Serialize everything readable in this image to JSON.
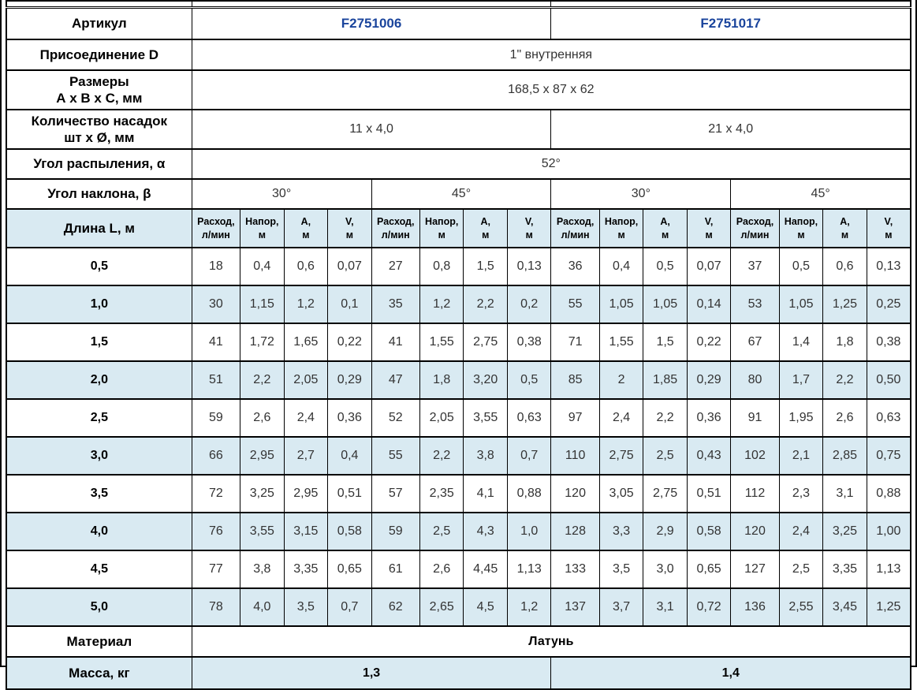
{
  "colors": {
    "stripe_blue": "#d9eaf2",
    "article_link_blue": "#1a449c",
    "border_black": "#000000"
  },
  "table": {
    "article": {
      "label": "Артикул",
      "values": [
        "F2751006",
        "F2751017"
      ]
    },
    "connection": {
      "label": "Присоединение D",
      "value": "1\" внутренняя"
    },
    "dimensions": {
      "label_line1": "Размеры",
      "label_line2": "А х В х С, мм",
      "value": "168,5 x 87 x 62"
    },
    "nozzles": {
      "label_line1": "Количество насадок",
      "label_line2": "шт х Ø, мм",
      "values": [
        "11 x 4,0",
        "21 x 4,0"
      ]
    },
    "spray_angle": {
      "label": "Угол распыления, α",
      "value": "52°"
    },
    "tilt_angle": {
      "label": "Угол наклона, β",
      "values": [
        "30°",
        "45°",
        "30°",
        "45°"
      ]
    },
    "length_header": "Длина L, м",
    "measure_headers": [
      {
        "line1": "Расход,",
        "line2": "л/мин"
      },
      {
        "line1": "Напор,",
        "line2": "м"
      },
      {
        "line1": "А,",
        "line2": "м"
      },
      {
        "line1": "V,",
        "line2": "м"
      }
    ],
    "rows": [
      {
        "length": "0,5",
        "values": [
          "18",
          "0,4",
          "0,6",
          "0,07",
          "27",
          "0,8",
          "1,5",
          "0,13",
          "36",
          "0,4",
          "0,5",
          "0,07",
          "37",
          "0,5",
          "0,6",
          "0,13"
        ]
      },
      {
        "length": "1,0",
        "values": [
          "30",
          "1,15",
          "1,2",
          "0,1",
          "35",
          "1,2",
          "2,2",
          "0,2",
          "55",
          "1,05",
          "1,05",
          "0,14",
          "53",
          "1,05",
          "1,25",
          "0,25"
        ]
      },
      {
        "length": "1,5",
        "values": [
          "41",
          "1,72",
          "1,65",
          "0,22",
          "41",
          "1,55",
          "2,75",
          "0,38",
          "71",
          "1,55",
          "1,5",
          "0,22",
          "67",
          "1,4",
          "1,8",
          "0,38"
        ]
      },
      {
        "length": "2,0",
        "values": [
          "51",
          "2,2",
          "2,05",
          "0,29",
          "47",
          "1,8",
          "3,20",
          "0,5",
          "85",
          "2",
          "1,85",
          "0,29",
          "80",
          "1,7",
          "2,2",
          "0,50"
        ]
      },
      {
        "length": "2,5",
        "values": [
          "59",
          "2,6",
          "2,4",
          "0,36",
          "52",
          "2,05",
          "3,55",
          "0,63",
          "97",
          "2,4",
          "2,2",
          "0,36",
          "91",
          "1,95",
          "2,6",
          "0,63"
        ]
      },
      {
        "length": "3,0",
        "values": [
          "66",
          "2,95",
          "2,7",
          "0,4",
          "55",
          "2,2",
          "3,8",
          "0,7",
          "110",
          "2,75",
          "2,5",
          "0,43",
          "102",
          "2,1",
          "2,85",
          "0,75"
        ]
      },
      {
        "length": "3,5",
        "values": [
          "72",
          "3,25",
          "2,95",
          "0,51",
          "57",
          "2,35",
          "4,1",
          "0,88",
          "120",
          "3,05",
          "2,75",
          "0,51",
          "112",
          "2,3",
          "3,1",
          "0,88"
        ]
      },
      {
        "length": "4,0",
        "values": [
          "76",
          "3,55",
          "3,15",
          "0,58",
          "59",
          "2,5",
          "4,3",
          "1,0",
          "128",
          "3,3",
          "2,9",
          "0,58",
          "120",
          "2,4",
          "3,25",
          "1,00"
        ]
      },
      {
        "length": "4,5",
        "values": [
          "77",
          "3,8",
          "3,35",
          "0,65",
          "61",
          "2,6",
          "4,45",
          "1,13",
          "133",
          "3,5",
          "3,0",
          "0,65",
          "127",
          "2,5",
          "3,35",
          "1,13"
        ]
      },
      {
        "length": "5,0",
        "values": [
          "78",
          "4,0",
          "3,5",
          "0,7",
          "62",
          "2,65",
          "4,5",
          "1,2",
          "137",
          "3,7",
          "3,1",
          "0,72",
          "136",
          "2,55",
          "3,45",
          "1,25"
        ]
      }
    ],
    "material": {
      "label": "Материал",
      "value": "Латунь"
    },
    "weight": {
      "label": "Масса, кг",
      "values": [
        "1,3",
        "1,4"
      ]
    }
  }
}
